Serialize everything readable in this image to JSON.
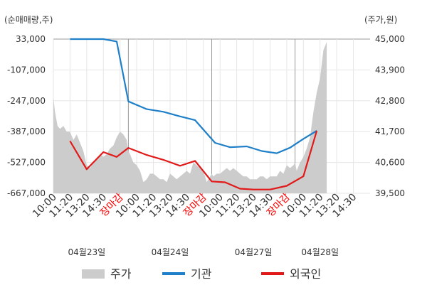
{
  "chart_data": {
    "type": "line",
    "left_axis_label": "(순매매량,주)",
    "right_axis_label": "(주가,원)",
    "left_axis": {
      "ylim": [
        -667000,
        33000
      ],
      "ticks": [
        "33,000",
        "-107,000",
        "-247,000",
        "-387,000",
        "-527,000",
        "-667,000"
      ],
      "values": [
        33000,
        -107000,
        -247000,
        -387000,
        -527000,
        -667000
      ]
    },
    "right_axis": {
      "ylim": [
        39500,
        45000
      ],
      "ticks": [
        "45,000",
        "43,900",
        "42,800",
        "41,700",
        "40,600",
        "39,500"
      ],
      "values": [
        45000,
        43900,
        42800,
        41700,
        40600,
        39500
      ]
    },
    "x_tick_labels": [
      "10:00",
      "11:20",
      "13:20",
      "14:30",
      "장마감",
      "10:00",
      "11:20",
      "13:20",
      "14:30",
      "장마감",
      "10:00",
      "11:20",
      "13:20",
      "14:30",
      "장마감",
      "10:00",
      "11:20",
      "13:20",
      "14:30"
    ],
    "x_tick_is_close": [
      false,
      false,
      false,
      false,
      true,
      false,
      false,
      false,
      false,
      true,
      false,
      false,
      false,
      false,
      true,
      false,
      false,
      false,
      false
    ],
    "dates": [
      "04월23일",
      "04월24일",
      "04월27일",
      "04월28일"
    ],
    "date_positions": [
      2,
      7,
      12,
      16
    ],
    "day_separators": [
      4.5,
      9.5,
      14.5
    ],
    "x_range": [
      0,
      19
    ],
    "grid": true,
    "legend_position": "bottom",
    "colors": {
      "price": "#cccccc",
      "institution": "#1f7fc8",
      "foreign": "#e11919",
      "close_label": "#ff0000",
      "grid": "#e6e6e6",
      "separator": "#999999",
      "axis_text": "#333333"
    },
    "series": [
      {
        "name": "주가",
        "axis": "right",
        "kind": "area",
        "x": [
          0,
          0.1,
          0.25,
          0.4,
          0.6,
          0.8,
          1.0,
          1.2,
          1.4,
          1.6,
          1.8,
          2.0,
          2.2,
          2.4,
          2.6,
          2.8,
          3.0,
          3.2,
          3.4,
          3.6,
          3.8,
          4.0,
          4.2,
          4.4,
          4.5,
          4.6,
          4.8,
          5.0,
          5.2,
          5.4,
          5.6,
          5.8,
          6.0,
          6.2,
          6.4,
          6.6,
          6.8,
          7.0,
          7.2,
          7.4,
          7.6,
          7.8,
          8.0,
          8.2,
          8.4,
          8.6,
          8.8,
          9.0,
          9.2,
          9.4,
          9.5,
          9.6,
          9.8,
          10.0,
          10.2,
          10.4,
          10.6,
          10.8,
          11.0,
          11.2,
          11.4,
          11.6,
          11.8,
          12.0,
          12.2,
          12.4,
          12.6,
          12.8,
          13.0,
          13.2,
          13.4,
          13.6,
          13.8,
          14.0,
          14.2,
          14.4,
          14.5,
          14.6,
          14.8,
          15.0,
          15.2,
          15.4,
          15.6,
          15.8,
          16.0,
          16.2,
          16.4
        ],
        "values": [
          42900,
          42400,
          41900,
          41800,
          41900,
          41700,
          41700,
          41400,
          41600,
          41300,
          41000,
          40500,
          40400,
          40600,
          40700,
          40900,
          40800,
          40900,
          41100,
          41200,
          41500,
          41700,
          41600,
          41400,
          41000,
          40900,
          40600,
          40500,
          40300,
          39900,
          40000,
          40200,
          40200,
          40100,
          40000,
          40000,
          39900,
          40200,
          40100,
          40000,
          40100,
          40200,
          40300,
          40200,
          40600,
          40500,
          40400,
          40300,
          39900,
          40100,
          40200,
          40100,
          40200,
          40200,
          40300,
          40400,
          40300,
          40400,
          40300,
          40200,
          40100,
          40100,
          40000,
          40000,
          40000,
          40100,
          40100,
          40000,
          40100,
          40100,
          40100,
          40300,
          40200,
          40500,
          40400,
          40500,
          40600,
          40300,
          40600,
          40800,
          41100,
          41500,
          42400,
          43100,
          43600,
          44600,
          44900
        ]
      },
      {
        "name": "기관",
        "axis": "left",
        "kind": "line",
        "x": [
          1,
          2,
          3,
          3.8,
          4.5,
          5.6,
          6.6,
          7.6,
          8.5,
          9.7,
          10.6,
          11.6,
          12.5,
          13.4,
          14.2,
          15.0,
          15.8
        ],
        "values": [
          33000,
          33000,
          33000,
          22000,
          -250000,
          -285000,
          -297000,
          -318000,
          -335000,
          -438000,
          -458000,
          -454000,
          -475000,
          -485000,
          -460000,
          -420000,
          -383000
        ]
      },
      {
        "name": "외국인",
        "axis": "left",
        "kind": "line",
        "x": [
          1,
          2,
          3,
          3.8,
          4.5,
          5.6,
          6.6,
          7.6,
          8.5,
          9.5,
          10.3,
          11.2,
          12.0,
          13.0,
          14.0,
          15.0,
          15.8
        ],
        "values": [
          -430000,
          -558000,
          -480000,
          -502000,
          -461000,
          -493000,
          -515000,
          -542000,
          -520000,
          -613000,
          -617000,
          -646000,
          -650000,
          -650000,
          -633000,
          -590000,
          -383000
        ]
      }
    ]
  }
}
